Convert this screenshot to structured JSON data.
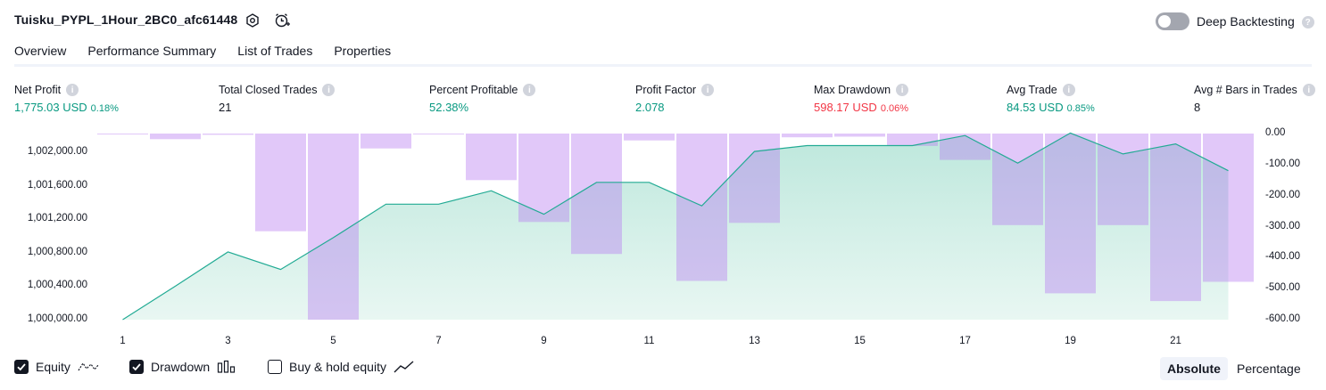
{
  "header": {
    "title": "Tuisku_PYPL_1Hour_2BC0_afc61448",
    "deep_backtesting_label": "Deep Backtesting"
  },
  "tabs": [
    {
      "label": "Overview"
    },
    {
      "label": "Performance Summary"
    },
    {
      "label": "List of Trades"
    },
    {
      "label": "Properties"
    }
  ],
  "metrics": {
    "net_profit": {
      "label": "Net Profit",
      "value": "1,775.03 USD",
      "pct": "0.18%"
    },
    "total_closed_trades": {
      "label": "Total Closed Trades",
      "value": "21"
    },
    "percent_profitable": {
      "label": "Percent Profitable",
      "value": "52.38%"
    },
    "profit_factor": {
      "label": "Profit Factor",
      "value": "2.078"
    },
    "max_drawdown": {
      "label": "Max Drawdown",
      "value": "598.17 USD",
      "pct": "0.06%"
    },
    "avg_trade": {
      "label": "Avg Trade",
      "value": "84.53 USD",
      "pct": "0.85%"
    },
    "avg_bars": {
      "label": "Avg # Bars in Trades",
      "value": "8"
    }
  },
  "chart_data": {
    "type": "area",
    "equity_axis_ticks": [
      "1,002,000.00",
      "1,001,600.00",
      "1,001,200.00",
      "1,000,800.00",
      "1,000,400.00",
      "1,000,000.00"
    ],
    "drawdown_axis_ticks": [
      "0.00",
      "-100.00",
      "-200.00",
      "-300.00",
      "-400.00",
      "-500.00",
      "-600.00"
    ],
    "x_ticks": [
      "1",
      "3",
      "5",
      "7",
      "9",
      "11",
      "13",
      "15",
      "17",
      "19",
      "21"
    ],
    "equity_ylim": [
      1000000,
      1002230
    ],
    "drawdown_ylim": [
      -600,
      0
    ],
    "x": [
      1,
      2,
      3,
      4,
      5,
      6,
      7,
      8,
      9,
      10,
      11,
      12,
      13,
      14,
      15,
      16,
      17,
      18,
      19,
      20,
      21,
      22
    ],
    "series": [
      {
        "name": "Equity",
        "values": [
          1000000,
          1000400,
          1000810,
          1000600,
          1000980,
          1001380,
          1001380,
          1001540,
          1001260,
          1001640,
          1001640,
          1001360,
          1002010,
          1002080,
          1002080,
          1002080,
          1002200,
          1001870,
          1002230,
          1001980,
          1002100,
          1001780
        ]
      },
      {
        "name": "Drawdown",
        "values": [
          -2,
          -18,
          -4,
          -315,
          -600,
          -48,
          -2,
          -150,
          -285,
          -388,
          -22,
          -475,
          -288,
          -12,
          -10,
          -40,
          -85,
          -295,
          -515,
          -295,
          -540,
          -478
        ]
      }
    ],
    "colors": {
      "equity_line": "#22ab94",
      "equity_fill": "#c8ebe3",
      "drawdown_fill": "#e1c3fb",
      "overlap_fill": "#b7b6e6"
    }
  },
  "legend": {
    "equity": {
      "label": "Equity",
      "checked": true
    },
    "drawdown": {
      "label": "Drawdown",
      "checked": true
    },
    "buy_hold": {
      "label": "Buy & hold equity",
      "checked": false
    }
  },
  "view_toggle": {
    "absolute": "Absolute",
    "percentage": "Percentage",
    "selected": "Absolute"
  }
}
